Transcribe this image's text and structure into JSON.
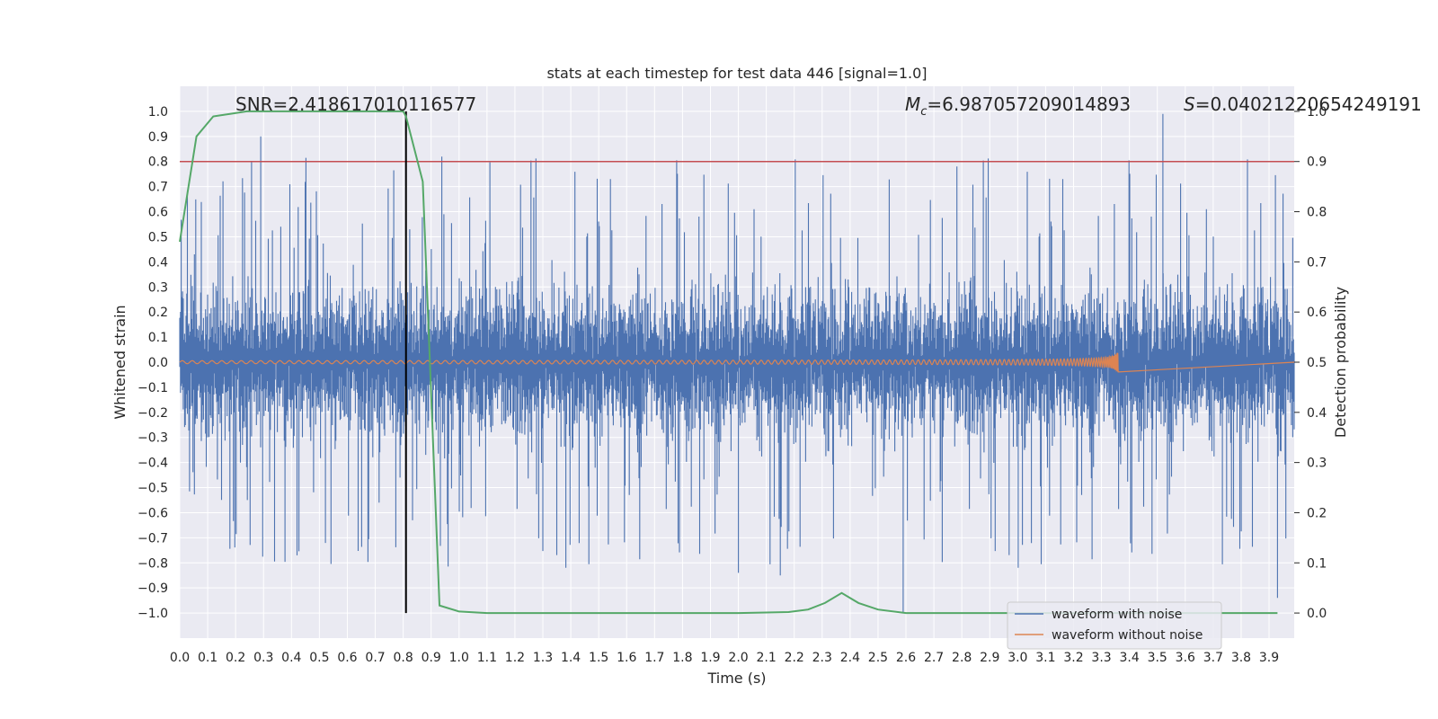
{
  "chart_data": {
    "type": "line",
    "title": "stats at each timestep for test data 446 [signal=1.0]",
    "xlabel": "Time (s)",
    "ylabel": "Whitened strain",
    "y2label": "Detection probability",
    "xlim": [
      0.0,
      3.99
    ],
    "ylim": [
      -1.1,
      1.1
    ],
    "y2lim": [
      -0.05,
      1.05
    ],
    "xticks": [
      "0.0",
      "0.1",
      "0.2",
      "0.3",
      "0.4",
      "0.5",
      "0.6",
      "0.7",
      "0.8",
      "0.9",
      "1.0",
      "1.1",
      "1.2",
      "1.3",
      "1.4",
      "1.5",
      "1.6",
      "1.7",
      "1.8",
      "1.9",
      "2.0",
      "2.1",
      "2.2",
      "2.3",
      "2.4",
      "2.5",
      "2.6",
      "2.7",
      "2.8",
      "2.9",
      "3.0",
      "3.1",
      "3.2",
      "3.3",
      "3.4",
      "3.5",
      "3.6",
      "3.7",
      "3.8",
      "3.9"
    ],
    "yticks": [
      "1.0",
      "0.9",
      "0.8",
      "0.7",
      "0.6",
      "0.5",
      "0.4",
      "0.3",
      "0.2",
      "0.1",
      "0.0",
      "−0.1",
      "−0.2",
      "−0.3",
      "−0.4",
      "−0.5",
      "−0.6",
      "−0.7",
      "−0.8",
      "−0.9",
      "−1.0"
    ],
    "y2ticks": [
      "1.0",
      "0.9",
      "0.8",
      "0.7",
      "0.6",
      "0.5",
      "0.4",
      "0.3",
      "0.2",
      "0.1",
      "0.0"
    ],
    "grid": true,
    "legend_position": "bottom-right",
    "annotations": {
      "snr": "SNR=2.418617010116577",
      "mc_symbol": "M",
      "mc_sub": "c",
      "mc_value": "=6.987057209014893",
      "s_symbol": "S",
      "s_value": "=0.04021220654249191"
    },
    "threshold_line": {
      "y2": 0.9,
      "color": "#c44e52"
    },
    "event_line": {
      "x": 0.81,
      "color": "#000000"
    },
    "series": [
      {
        "name": "waveform with noise",
        "color": "#4c72b0",
        "description_shape": "noise",
        "approx_extremes": [
          {
            "x": 0.29,
            "y": 0.9
          },
          {
            "x": 3.52,
            "y": 0.99
          },
          {
            "x": 2.59,
            "y": -1.0
          },
          {
            "x": 3.93,
            "y": -0.94
          },
          {
            "x": 0.42,
            "y": -0.77
          },
          {
            "x": 2.0,
            "y": -0.84
          },
          {
            "x": 2.15,
            "y": -0.85
          }
        ]
      },
      {
        "name": "waveform without noise",
        "color": "#dd8452",
        "chirp_end_x": 3.36,
        "chirp_max_amplitude": 0.07
      },
      {
        "name": "detection probability",
        "color": "#55a868",
        "axis": "y2",
        "x": [
          0.0,
          0.06,
          0.12,
          0.18,
          0.24,
          0.3,
          0.5,
          0.7,
          0.8,
          0.81,
          0.87,
          0.93,
          1.0,
          1.1,
          1.5,
          2.0,
          2.18,
          2.25,
          2.31,
          2.37,
          2.43,
          2.5,
          2.6,
          3.0,
          3.5,
          3.93
        ],
        "values": [
          0.74,
          0.95,
          0.99,
          0.995,
          1.0,
          1.0,
          1.0,
          1.0,
          1.0,
          0.99,
          0.86,
          0.015,
          0.003,
          0.0,
          0.0,
          0.0,
          0.002,
          0.007,
          0.02,
          0.04,
          0.02,
          0.007,
          0.0,
          0.0,
          0.0,
          0.0
        ]
      }
    ]
  }
}
